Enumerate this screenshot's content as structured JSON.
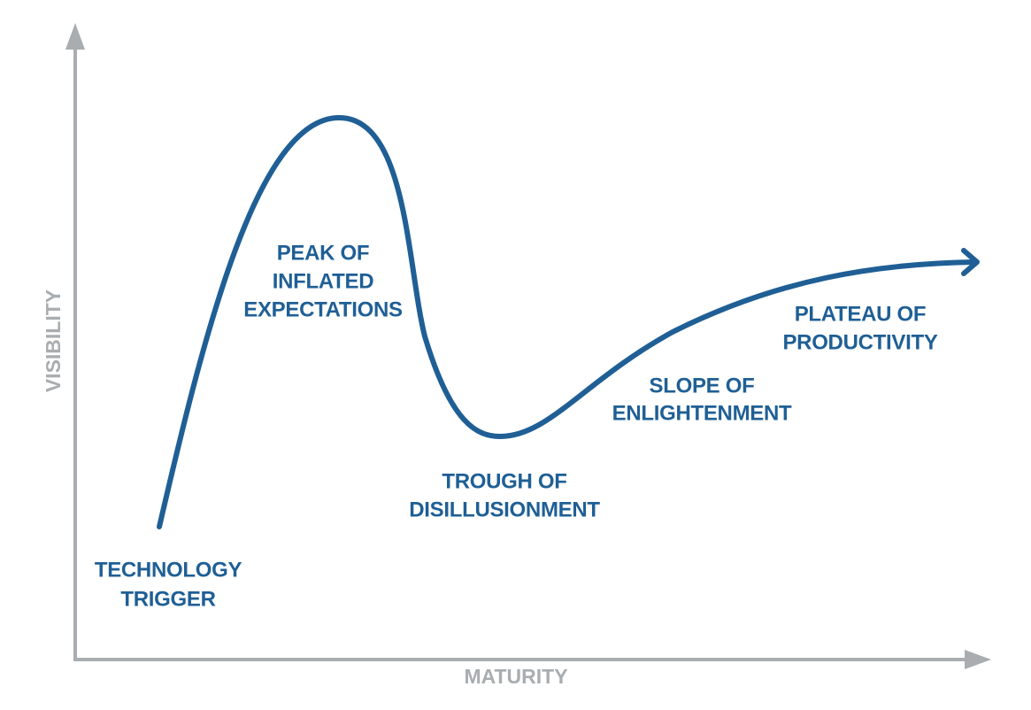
{
  "axes": {
    "y_label": "VISIBILITY",
    "x_label": "MATURITY"
  },
  "phases": [
    {
      "lines": [
        "TECHNOLOGY",
        "TRIGGER"
      ]
    },
    {
      "lines": [
        "PEAK OF",
        "INFLATED",
        "EXPECTATIONS"
      ]
    },
    {
      "lines": [
        "TROUGH OF",
        "DISILLUSIONMENT"
      ]
    },
    {
      "lines": [
        "SLOPE OF",
        "ENLIGHTENMENT"
      ]
    },
    {
      "lines": [
        "PLATEAU OF",
        "PRODUCTIVITY"
      ]
    }
  ]
}
